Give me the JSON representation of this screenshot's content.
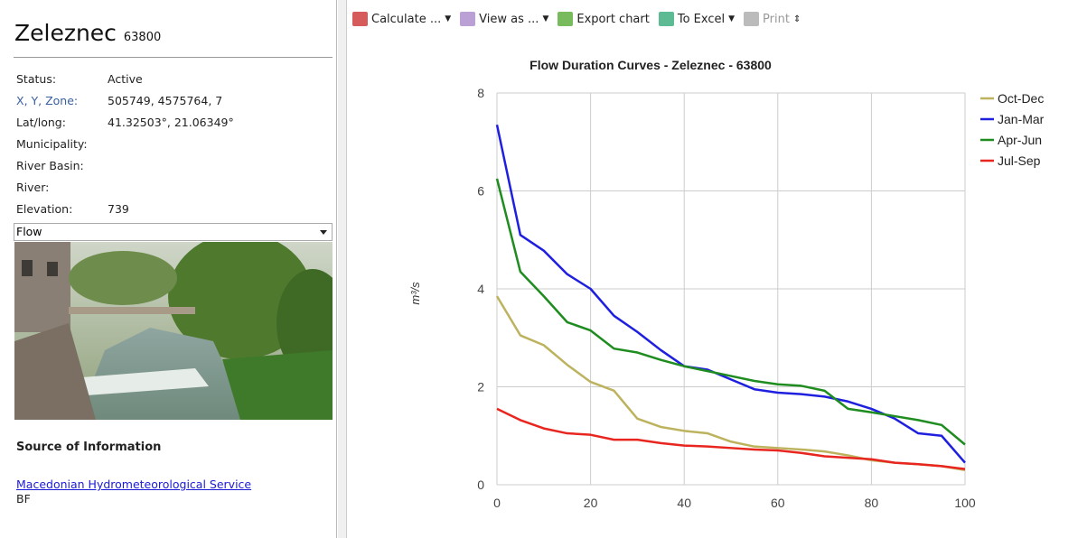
{
  "header": {
    "title": "Zeleznec",
    "code": "63800"
  },
  "fields": [
    {
      "label": "Status:",
      "value": "Active"
    },
    {
      "label": "X, Y, Zone:",
      "value": "505749, 4575764, 7"
    },
    {
      "label": "Lat/long:",
      "value": "41.32503°, 21.06349°"
    },
    {
      "label": "Municipality:"
    },
    {
      "label": "River Basin:"
    },
    {
      "label": "River:"
    },
    {
      "label": "Elevation:",
      "value": "739"
    }
  ],
  "selector": "Flow",
  "source": {
    "heading": "Source of Information",
    "link": "Macedonian Hydrometeorological Service",
    "note": "BF"
  },
  "toolbar": [
    "Calculate ...",
    "View as ...",
    "Export chart",
    "To Excel",
    "Print"
  ],
  "chart_data": {
    "type": "line",
    "title": "Flow Duration Curves - Zeleznec - 63800",
    "y_label": "m³/s",
    "x": [
      0,
      5,
      10,
      15,
      20,
      25,
      30,
      35,
      40,
      45,
      50,
      55,
      60,
      65,
      70,
      75,
      80,
      85,
      90,
      95,
      100
    ],
    "series": [
      {
        "name": "Oct-Dec",
        "color": "#bdb35e",
        "values": [
          3.85,
          3.05,
          2.85,
          2.45,
          2.1,
          1.92,
          1.35,
          1.18,
          1.1,
          1.05,
          0.88,
          0.78,
          0.75,
          0.72,
          0.68,
          0.6,
          0.5,
          0.45,
          0.42,
          0.38,
          0.3
        ]
      },
      {
        "name": "Jan-Mar",
        "color": "#1f1fe0",
        "values": [
          7.35,
          5.1,
          4.78,
          4.3,
          4.0,
          3.45,
          3.12,
          2.75,
          2.42,
          2.35,
          2.15,
          1.95,
          1.88,
          1.85,
          1.8,
          1.7,
          1.55,
          1.35,
          1.05,
          1.0,
          0.45
        ]
      },
      {
        "name": "Apr-Jun",
        "color": "#1f8c1f",
        "values": [
          6.25,
          4.35,
          3.85,
          3.32,
          3.15,
          2.78,
          2.7,
          2.55,
          2.42,
          2.32,
          2.22,
          2.12,
          2.05,
          2.02,
          1.92,
          1.55,
          1.48,
          1.4,
          1.32,
          1.22,
          0.82
        ]
      },
      {
        "name": "Jul-Sep",
        "color": "#e8261f",
        "values": [
          1.55,
          1.32,
          1.15,
          1.05,
          1.02,
          0.92,
          0.92,
          0.85,
          0.8,
          0.78,
          0.75,
          0.72,
          0.7,
          0.65,
          0.58,
          0.55,
          0.52,
          0.45,
          0.42,
          0.38,
          0.32
        ]
      }
    ],
    "xlim": [
      0,
      100
    ],
    "xticks": [
      0,
      20,
      40,
      60,
      80,
      100
    ],
    "ylim": [
      0,
      8
    ],
    "yticks": [
      0,
      2,
      4,
      6,
      8
    ],
    "grid": true,
    "legend": "right"
  }
}
